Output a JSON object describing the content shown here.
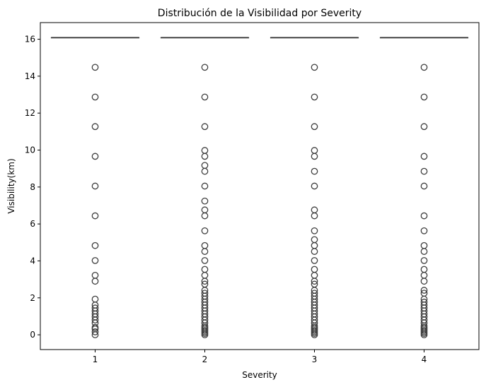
{
  "chart_data": {
    "type": "box",
    "title": "Distribución de la Visibilidad por Severity",
    "xlabel": "Severity",
    "ylabel": "Visibility(km)",
    "categories": [
      "1",
      "2",
      "3",
      "4"
    ],
    "ylim": [
      -0.8,
      16.9
    ],
    "yticks": [
      0,
      2,
      4,
      6,
      8,
      10,
      12,
      14,
      16
    ],
    "grid": false,
    "box_color": "#ffffff",
    "line_color": "#3d3d3d",
    "boxes": [
      {
        "category": "1",
        "min": 16.09,
        "q1": 16.09,
        "median": 16.09,
        "q3": 16.09,
        "max": 16.09,
        "outliers": [
          14.48,
          12.87,
          11.27,
          9.66,
          8.05,
          6.44,
          4.83,
          4.02,
          3.22,
          2.9,
          1.93,
          1.61,
          1.45,
          1.29,
          1.13,
          0.97,
          0.8,
          0.64,
          0.4,
          0.32,
          0.16,
          0.0
        ]
      },
      {
        "category": "2",
        "min": 16.09,
        "q1": 16.09,
        "median": 16.09,
        "q3": 16.09,
        "max": 16.09,
        "outliers": [
          14.48,
          12.87,
          11.27,
          9.98,
          9.66,
          9.17,
          8.85,
          8.05,
          7.24,
          6.76,
          6.44,
          5.63,
          4.83,
          4.51,
          4.02,
          3.54,
          3.22,
          2.9,
          2.74,
          2.41,
          2.25,
          2.09,
          1.93,
          1.77,
          1.61,
          1.45,
          1.29,
          1.13,
          0.97,
          0.8,
          0.64,
          0.48,
          0.4,
          0.32,
          0.24,
          0.16,
          0.08,
          0.0
        ]
      },
      {
        "category": "3",
        "min": 16.09,
        "q1": 16.09,
        "median": 16.09,
        "q3": 16.09,
        "max": 16.09,
        "outliers": [
          14.48,
          12.87,
          11.27,
          9.98,
          9.66,
          8.85,
          8.05,
          6.76,
          6.44,
          5.63,
          5.15,
          4.83,
          4.51,
          4.02,
          3.54,
          3.22,
          2.9,
          2.74,
          2.41,
          2.25,
          2.09,
          1.93,
          1.77,
          1.61,
          1.45,
          1.29,
          1.13,
          0.97,
          0.8,
          0.64,
          0.48,
          0.4,
          0.32,
          0.24,
          0.16,
          0.08,
          0.0
        ]
      },
      {
        "category": "4",
        "min": 16.09,
        "q1": 16.09,
        "median": 16.09,
        "q3": 16.09,
        "max": 16.09,
        "outliers": [
          14.48,
          12.87,
          11.27,
          9.66,
          8.85,
          8.05,
          6.44,
          5.63,
          4.83,
          4.51,
          4.02,
          3.54,
          3.22,
          2.9,
          2.41,
          2.25,
          1.93,
          1.77,
          1.61,
          1.45,
          1.29,
          1.13,
          0.97,
          0.8,
          0.64,
          0.48,
          0.4,
          0.32,
          0.24,
          0.16,
          0.08,
          0.0
        ]
      }
    ]
  }
}
